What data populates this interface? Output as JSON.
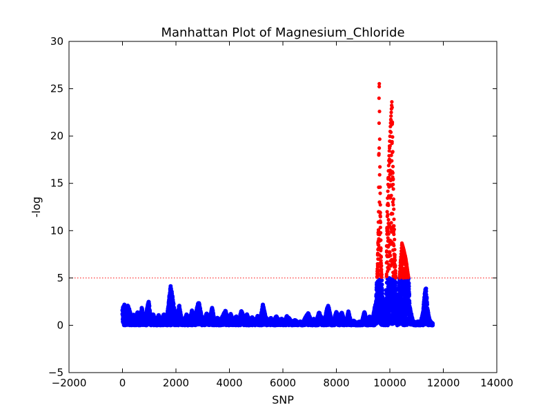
{
  "chart_data": {
    "type": "scatter",
    "title": "Manhattan Plot of Magnesium_Chloride",
    "xlabel": "SNP",
    "ylabel": "-log",
    "xlim": [
      -2000,
      14000
    ],
    "ylim": [
      -5,
      30
    ],
    "xticks": [
      -2000,
      0,
      2000,
      4000,
      6000,
      8000,
      10000,
      12000,
      14000
    ],
    "yticks": [
      -5,
      0,
      5,
      10,
      15,
      20,
      25,
      30
    ],
    "threshold": 5,
    "grid": false,
    "colors": {
      "below_threshold": "#0000ff",
      "above_threshold": "#ff0000",
      "threshold_line": "#ff0000"
    },
    "profile": [
      [
        0,
        1.8
      ],
      [
        80,
        2.3
      ],
      [
        150,
        1.0
      ],
      [
        200,
        2.2
      ],
      [
        280,
        1.4
      ],
      [
        350,
        0.5
      ],
      [
        420,
        1.2
      ],
      [
        500,
        0.4
      ],
      [
        560,
        1.5
      ],
      [
        650,
        0.6
      ],
      [
        720,
        1.9
      ],
      [
        800,
        0.7
      ],
      [
        900,
        1.5
      ],
      [
        980,
        2.6
      ],
      [
        1050,
        0.8
      ],
      [
        1150,
        1.2
      ],
      [
        1250,
        0.4
      ],
      [
        1350,
        1.1
      ],
      [
        1450,
        0.6
      ],
      [
        1550,
        1.2
      ],
      [
        1650,
        0.5
      ],
      [
        1750,
        3.0
      ],
      [
        1800,
        4.3
      ],
      [
        1850,
        3.4
      ],
      [
        1950,
        1.5
      ],
      [
        2050,
        0.9
      ],
      [
        2120,
        2.2
      ],
      [
        2200,
        0.8
      ],
      [
        2300,
        0.4
      ],
      [
        2400,
        1.2
      ],
      [
        2500,
        0.5
      ],
      [
        2600,
        1.6
      ],
      [
        2700,
        0.8
      ],
      [
        2800,
        2.0
      ],
      [
        2850,
        2.6
      ],
      [
        2950,
        1.0
      ],
      [
        3050,
        0.6
      ],
      [
        3150,
        1.3
      ],
      [
        3250,
        0.5
      ],
      [
        3350,
        1.9
      ],
      [
        3450,
        0.4
      ],
      [
        3550,
        0.8
      ],
      [
        3650,
        0.5
      ],
      [
        3750,
        1.0
      ],
      [
        3850,
        1.6
      ],
      [
        3950,
        0.6
      ],
      [
        4050,
        1.2
      ],
      [
        4150,
        0.4
      ],
      [
        4250,
        1.0
      ],
      [
        4350,
        0.5
      ],
      [
        4450,
        1.6
      ],
      [
        4550,
        0.7
      ],
      [
        4650,
        1.2
      ],
      [
        4750,
        0.5
      ],
      [
        4850,
        0.9
      ],
      [
        4950,
        0.4
      ],
      [
        5050,
        1.0
      ],
      [
        5150,
        0.7
      ],
      [
        5250,
        2.2
      ],
      [
        5350,
        0.9
      ],
      [
        5450,
        0.5
      ],
      [
        5550,
        0.8
      ],
      [
        5650,
        0.4
      ],
      [
        5750,
        1.0
      ],
      [
        5850,
        0.5
      ],
      [
        5950,
        0.7
      ],
      [
        6050,
        0.4
      ],
      [
        6150,
        1.0
      ],
      [
        6250,
        0.7
      ],
      [
        6350,
        0.3
      ],
      [
        6450,
        0.6
      ],
      [
        6550,
        0.3
      ],
      [
        6650,
        0.4
      ],
      [
        6750,
        0.3
      ],
      [
        6850,
        0.9
      ],
      [
        6950,
        1.3
      ],
      [
        7050,
        0.5
      ],
      [
        7150,
        0.7
      ],
      [
        7250,
        0.4
      ],
      [
        7350,
        1.4
      ],
      [
        7450,
        0.8
      ],
      [
        7550,
        0.4
      ],
      [
        7650,
        1.8
      ],
      [
        7700,
        2.1
      ],
      [
        7800,
        0.7
      ],
      [
        7900,
        0.5
      ],
      [
        8000,
        1.5
      ],
      [
        8100,
        0.8
      ],
      [
        8200,
        1.4
      ],
      [
        8300,
        0.5
      ],
      [
        8400,
        0.8
      ],
      [
        8450,
        1.5
      ],
      [
        8550,
        0.3
      ],
      [
        8650,
        0.5
      ],
      [
        8750,
        0.2
      ],
      [
        8850,
        0.4
      ],
      [
        8950,
        0.3
      ],
      [
        9050,
        1.5
      ],
      [
        9150,
        0.3
      ],
      [
        9250,
        1.0
      ],
      [
        9350,
        0.5
      ],
      [
        9420,
        1.7
      ],
      [
        9480,
        2.5
      ],
      [
        9540,
        6.5
      ],
      [
        9580,
        12
      ],
      [
        9600,
        27
      ],
      [
        9630,
        16
      ],
      [
        9660,
        9
      ],
      [
        9700,
        4.5
      ],
      [
        9740,
        2.2
      ],
      [
        9780,
        0.8
      ],
      [
        9820,
        0.5
      ],
      [
        9860,
        3.0
      ],
      [
        9900,
        12
      ],
      [
        9950,
        16.5
      ],
      [
        10020,
        21
      ],
      [
        10080,
        23.8
      ],
      [
        10120,
        16
      ],
      [
        10180,
        8
      ],
      [
        10230,
        4.5
      ],
      [
        10270,
        2.0
      ],
      [
        10320,
        3.5
      ],
      [
        10380,
        6
      ],
      [
        10450,
        8.7
      ],
      [
        10520,
        8
      ],
      [
        10600,
        7
      ],
      [
        10650,
        6
      ],
      [
        10700,
        5.0
      ],
      [
        10740,
        2.0
      ],
      [
        10800,
        1.2
      ],
      [
        10850,
        0.5
      ],
      [
        10950,
        0.3
      ],
      [
        11050,
        0.4
      ],
      [
        11150,
        0.3
      ],
      [
        11250,
        1.5
      ],
      [
        11300,
        3.5
      ],
      [
        11350,
        4.0
      ],
      [
        11400,
        2.0
      ],
      [
        11450,
        1.0
      ],
      [
        11500,
        0.5
      ],
      [
        11550,
        0.3
      ],
      [
        11600,
        0.2
      ]
    ]
  }
}
